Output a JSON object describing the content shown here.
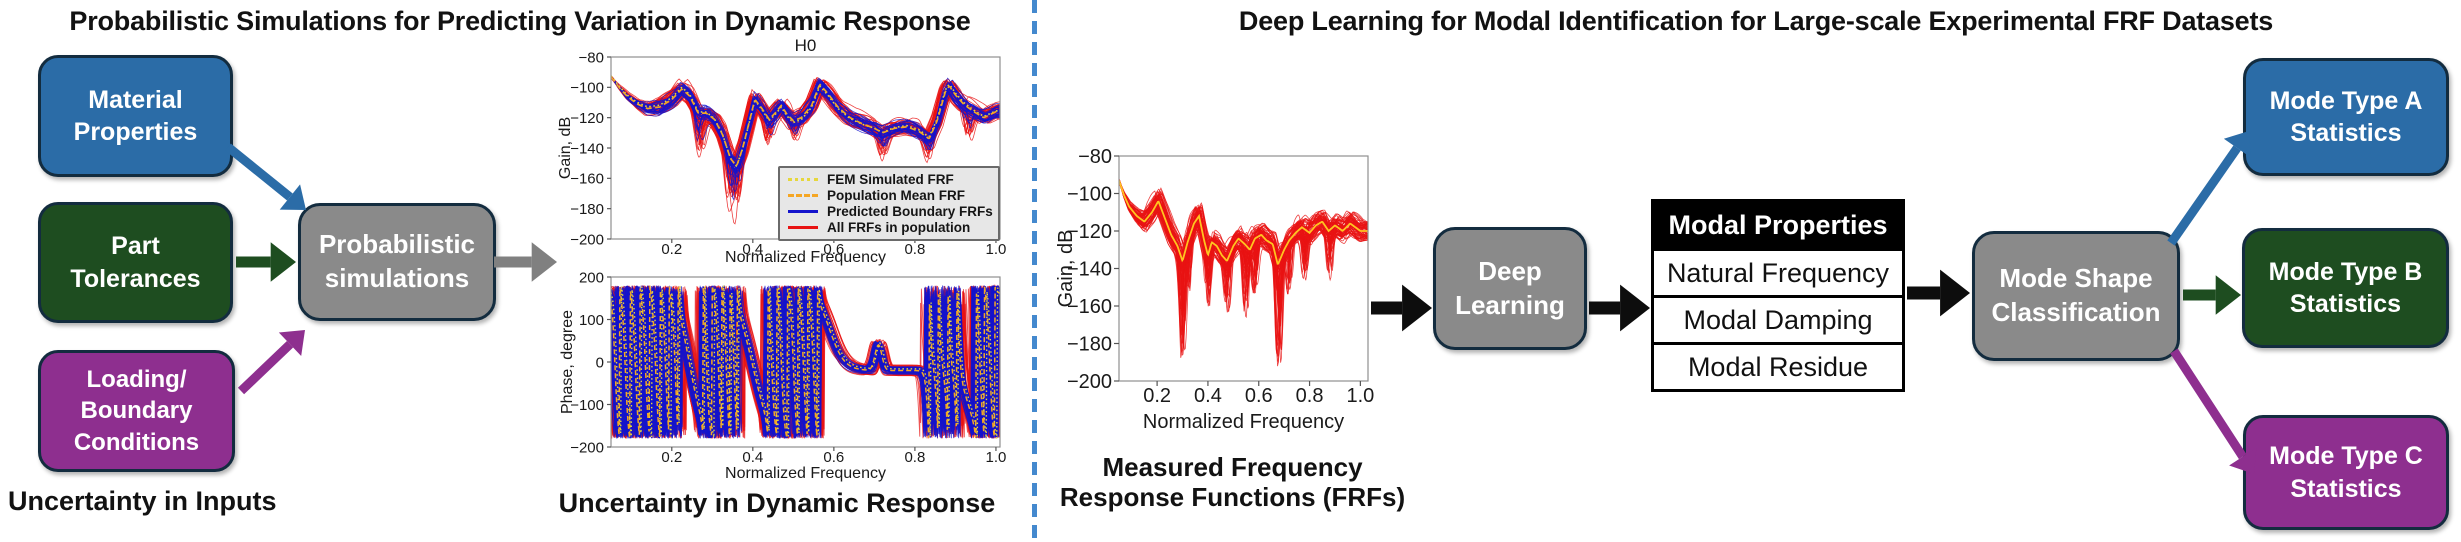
{
  "left": {
    "title": "Probabilistic Simulations for Predicting Variation in Dynamic Response",
    "input_boxes": [
      {
        "id": "material",
        "label": "Material\nProperties",
        "color_key": "blue_box"
      },
      {
        "id": "tolerances",
        "label": "Part\nTolerances",
        "color_key": "green_box"
      },
      {
        "id": "loading",
        "label": "Loading/\nBoundary\nConditions",
        "color_key": "purple_box"
      }
    ],
    "process_box_label": "Probabilistic\nsimulations",
    "caption_inputs": "Uncertainty in Inputs",
    "caption_response": "Uncertainty in Dynamic Response"
  },
  "right": {
    "title": "Deep Learning for Modal Identification for Large-scale Experimental FRF Datasets",
    "measured_caption": "Measured Frequency\nResponse Functions (FRFs)",
    "deep_learning_label": "Deep\nLearning",
    "table": {
      "header": "Modal Properties",
      "rows": [
        "Natural Frequency",
        "Modal Damping",
        "Modal Residue"
      ]
    },
    "mode_shape_label": "Mode Shape\nClassification",
    "mode_boxes": [
      {
        "id": "mode-a",
        "label": "Mode Type A\nStatistics",
        "color_key": "blue_box"
      },
      {
        "id": "mode-b",
        "label": "Mode Type B\nStatistics",
        "color_key": "green_box"
      },
      {
        "id": "mode-c",
        "label": "Mode Type C\nStatistics",
        "color_key": "purple_box"
      }
    ]
  },
  "colors": {
    "blue_box": "#2B6CA7",
    "green_box": "#1E4D20",
    "purple_box": "#8E2F8F",
    "gray_box": "#8A8A8A",
    "box_border": "#132C3F",
    "arrow_gray": "#808080",
    "arrow_black": "#0D0D0D",
    "divider": "#4489CE",
    "red_line": "#E81313",
    "blue_line": "#1414CC",
    "yellow_line": "#E6D73C",
    "orange_line": "#F5A623",
    "measured_mean": "#FFC420",
    "table_header_bg": "#000000"
  },
  "chart_data": [
    {
      "id": "gain-h0",
      "type": "line",
      "title": "H0",
      "xlabel": "Normalized Frequency",
      "ylabel": "Gain, dB",
      "xlim": [
        0.05,
        1.01
      ],
      "ylim": [
        -200,
        -80
      ],
      "xticks": [
        0.2,
        0.4,
        0.6,
        0.8,
        1.0
      ],
      "yticks": [
        -80,
        -100,
        -120,
        -140,
        -160,
        -180,
        -200
      ],
      "grid": false,
      "legend_position": "lower right",
      "legend": [
        {
          "label": "FEM Simulated FRF",
          "color": "#E6D73C",
          "dash": "dotted"
        },
        {
          "label": "Population Mean FRF",
          "color": "#F5A623",
          "dash": "dashed"
        },
        {
          "label": "Predicted Boundary FRFs",
          "color": "#1414CC",
          "dash": "solid"
        },
        {
          "label": "All FRFs in population",
          "color": "#E81313",
          "dash": "solid"
        }
      ],
      "mean_gain": [
        [
          0.05,
          -93
        ],
        [
          0.07,
          -100
        ],
        [
          0.09,
          -106
        ],
        [
          0.115,
          -111
        ],
        [
          0.14,
          -114
        ],
        [
          0.17,
          -113
        ],
        [
          0.2,
          -108
        ],
        [
          0.225,
          -101
        ],
        [
          0.245,
          -106
        ],
        [
          0.265,
          -117
        ],
        [
          0.285,
          -117
        ],
        [
          0.305,
          -121
        ],
        [
          0.325,
          -131
        ],
        [
          0.345,
          -147
        ],
        [
          0.36,
          -152
        ],
        [
          0.375,
          -140
        ],
        [
          0.39,
          -124
        ],
        [
          0.405,
          -108
        ],
        [
          0.42,
          -113
        ],
        [
          0.44,
          -121
        ],
        [
          0.455,
          -117
        ],
        [
          0.47,
          -112
        ],
        [
          0.485,
          -118
        ],
        [
          0.5,
          -122
        ],
        [
          0.52,
          -120
        ],
        [
          0.545,
          -112
        ],
        [
          0.565,
          -98
        ],
        [
          0.585,
          -104
        ],
        [
          0.61,
          -113
        ],
        [
          0.64,
          -120
        ],
        [
          0.67,
          -124
        ],
        [
          0.7,
          -127
        ],
        [
          0.72,
          -130
        ],
        [
          0.75,
          -127
        ],
        [
          0.78,
          -126
        ],
        [
          0.81,
          -129
        ],
        [
          0.835,
          -134
        ],
        [
          0.855,
          -122
        ],
        [
          0.875,
          -103
        ],
        [
          0.885,
          -99
        ],
        [
          0.9,
          -105
        ],
        [
          0.92,
          -111
        ],
        [
          0.945,
          -116
        ],
        [
          0.97,
          -120
        ],
        [
          1.0,
          -116
        ]
      ],
      "dips": [
        [
          0.27,
          28
        ],
        [
          0.345,
          30
        ],
        [
          0.365,
          28
        ],
        [
          0.44,
          16
        ],
        [
          0.5,
          14
        ],
        [
          0.72,
          16
        ],
        [
          0.835,
          14
        ],
        [
          0.93,
          18
        ]
      ],
      "ensemble": {
        "red": 55,
        "blue": 35
      }
    },
    {
      "id": "phase",
      "type": "line",
      "title": "",
      "xlabel": "Normalized Frequency",
      "ylabel": "Phase, degree",
      "xlim": [
        0.05,
        1.01
      ],
      "ylim": [
        -200,
        200
      ],
      "xticks": [
        0.2,
        0.4,
        0.6,
        0.8,
        1.0
      ],
      "yticks": [
        200,
        100,
        0,
        -100,
        -200
      ],
      "grid": false,
      "resonances": [
        [
          0.06,
          0.004,
          360
        ],
        [
          0.085,
          0.004,
          360
        ],
        [
          0.11,
          0.004,
          360
        ],
        [
          0.135,
          0.004,
          360
        ],
        [
          0.16,
          0.004,
          360
        ],
        [
          0.185,
          0.004,
          360
        ],
        [
          0.21,
          0.004,
          360
        ],
        [
          0.245,
          0.018,
          360
        ],
        [
          0.285,
          0.0035,
          360
        ],
        [
          0.315,
          0.004,
          360
        ],
        [
          0.335,
          0.004,
          360
        ],
        [
          0.355,
          0.004,
          360
        ],
        [
          0.4,
          0.022,
          360
        ],
        [
          0.445,
          0.004,
          360
        ],
        [
          0.47,
          0.004,
          360
        ],
        [
          0.5,
          0.004,
          360
        ],
        [
          0.525,
          0.004,
          360
        ],
        [
          0.55,
          0.004,
          360
        ],
        [
          0.59,
          0.018,
          190
        ],
        [
          0.835,
          0.004,
          360
        ],
        [
          0.858,
          0.004,
          360
        ],
        [
          0.882,
          0.004,
          360
        ],
        [
          0.905,
          0.004,
          360
        ],
        [
          0.935,
          0.015,
          180
        ],
        [
          0.96,
          0.004,
          360
        ],
        [
          0.985,
          0.004,
          360
        ]
      ],
      "phase_bump": {
        "x": 0.71,
        "height": 60,
        "width": 0.012
      },
      "ensemble": {
        "red": 45,
        "blue": 45
      }
    },
    {
      "id": "measured",
      "type": "line",
      "title": "",
      "xlabel": "Normalized Frequency",
      "ylabel": "Gain, dB",
      "xlim": [
        0.05,
        1.03
      ],
      "ylim": [
        -200,
        -80
      ],
      "xticks": [
        0.2,
        0.4,
        0.6,
        0.8,
        1.0
      ],
      "yticks": [
        -80,
        -100,
        -120,
        -140,
        -160,
        -180,
        -200
      ],
      "grid": false,
      "mean_gain": [
        [
          0.05,
          -93
        ],
        [
          0.07,
          -101
        ],
        [
          0.09,
          -107
        ],
        [
          0.12,
          -112
        ],
        [
          0.15,
          -115
        ],
        [
          0.18,
          -110
        ],
        [
          0.205,
          -104
        ],
        [
          0.23,
          -113
        ],
        [
          0.255,
          -122
        ],
        [
          0.28,
          -128
        ],
        [
          0.3,
          -136
        ],
        [
          0.32,
          -126
        ],
        [
          0.345,
          -116
        ],
        [
          0.365,
          -112
        ],
        [
          0.385,
          -125
        ],
        [
          0.4,
          -133
        ],
        [
          0.415,
          -126
        ],
        [
          0.435,
          -128
        ],
        [
          0.455,
          -133
        ],
        [
          0.475,
          -136
        ],
        [
          0.5,
          -128
        ],
        [
          0.52,
          -124
        ],
        [
          0.545,
          -127
        ],
        [
          0.565,
          -130
        ],
        [
          0.585,
          -124
        ],
        [
          0.61,
          -122
        ],
        [
          0.63,
          -125
        ],
        [
          0.655,
          -127
        ],
        [
          0.675,
          -138
        ],
        [
          0.7,
          -130
        ],
        [
          0.72,
          -125
        ],
        [
          0.745,
          -121
        ],
        [
          0.77,
          -118
        ],
        [
          0.8,
          -121
        ],
        [
          0.825,
          -117
        ],
        [
          0.85,
          -115
        ],
        [
          0.875,
          -120
        ],
        [
          0.9,
          -117
        ],
        [
          0.93,
          -120
        ],
        [
          0.96,
          -116
        ],
        [
          1.0,
          -120
        ]
      ],
      "dips": [
        [
          0.3,
          55
        ],
        [
          0.325,
          25
        ],
        [
          0.4,
          30
        ],
        [
          0.475,
          30
        ],
        [
          0.55,
          35
        ],
        [
          0.585,
          25
        ],
        [
          0.68,
          60
        ],
        [
          0.72,
          30
        ],
        [
          0.78,
          25
        ],
        [
          0.88,
          20
        ]
      ],
      "ensemble": {
        "red": 70,
        "blue": 0
      }
    }
  ]
}
